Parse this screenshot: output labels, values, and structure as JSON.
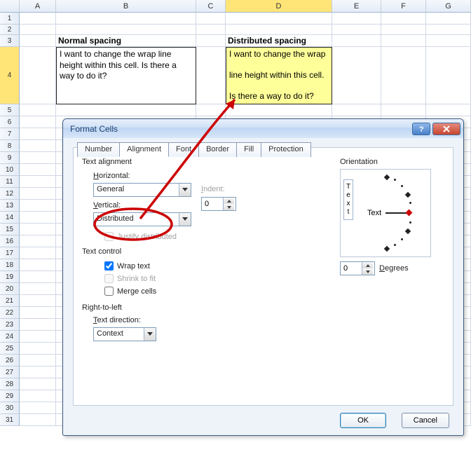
{
  "columns": [
    "A",
    "B",
    "C",
    "D",
    "E",
    "F",
    "G"
  ],
  "rows_before": [
    1,
    2,
    3
  ],
  "tall_row": 4,
  "rows_after": [
    5,
    6,
    7,
    8,
    9,
    10,
    11,
    12,
    13,
    14,
    15,
    16,
    17,
    18,
    19,
    20,
    21,
    22,
    23,
    24,
    25,
    26,
    27,
    28,
    29,
    30,
    31
  ],
  "headers": {
    "b3": "Normal spacing",
    "d3": "Distributed spacing"
  },
  "cells": {
    "b4": "I want to change the wrap line height within this cell. Is there a way to do it?",
    "d4_l1": "I want to change the wrap",
    "d4_l2": "line height within this cell.",
    "d4_l3": "Is there a way to do it?"
  },
  "dialog": {
    "title": "Format Cells",
    "tabs": [
      "Number",
      "Alignment",
      "Font",
      "Border",
      "Fill",
      "Protection"
    ],
    "active_tab": "Alignment",
    "text_alignment": {
      "label": "Text alignment",
      "horizontal_label": "Horizontal:",
      "horizontal_value": "General",
      "indent_label": "Indent:",
      "indent_value": "0",
      "vertical_label": "Vertical:",
      "vertical_value": "Distributed",
      "justify_label": "Justify distributed"
    },
    "text_control": {
      "label": "Text control",
      "wrap": "Wrap text",
      "wrap_checked": true,
      "shrink": "Shrink to fit",
      "shrink_enabled": false,
      "merge": "Merge cells"
    },
    "rtl": {
      "label": "Right-to-left",
      "dir_label": "Text direction:",
      "dir_value": "Context"
    },
    "orientation": {
      "label": "Orientation",
      "vtext": "Text",
      "htext": "Text",
      "degrees_label": "Degrees",
      "degrees_value": "0"
    },
    "ok": "OK",
    "cancel": "Cancel"
  },
  "colors": {
    "highlight_cell": "#ffff99",
    "annot_red": "#cc0000"
  }
}
